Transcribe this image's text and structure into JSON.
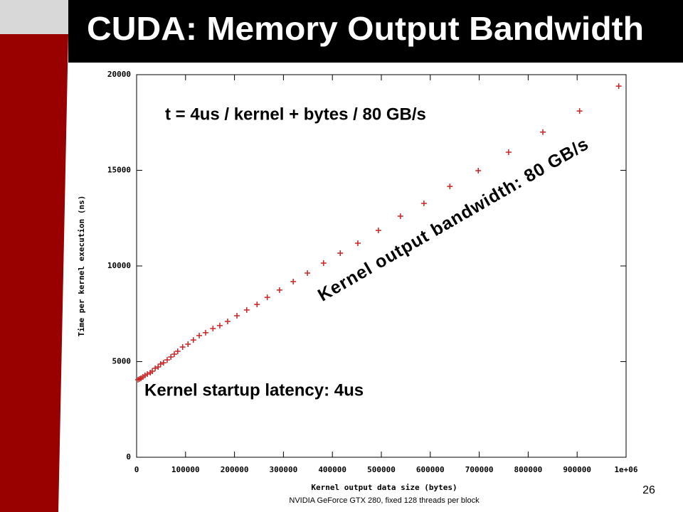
{
  "slide_number": "26",
  "footnote": "NVIDIA GeForce GTX 280, fixed 128 threads per block",
  "chart_data": {
    "type": "scatter",
    "title": "CUDA: Memory Output Bandwidth",
    "x_label": "Kernel output data size (bytes)",
    "y_label": "Time per kernel execution (ns)",
    "annotations": [
      "t = 4us / kernel + bytes / 80 GB/s",
      "Kernel output bandwidth: 80 GB/s",
      "Kernel startup latency: 4us"
    ],
    "color": "#cc2222",
    "x": [
      3000,
      6000,
      9000,
      13000,
      17000,
      22000,
      28000,
      32000,
      38000,
      44000,
      49000,
      55000,
      62500,
      70000,
      77000,
      84000,
      94000,
      105000,
      116000,
      128000,
      141000,
      156000,
      170000,
      186000,
      205000,
      225000,
      246000,
      267000,
      292000,
      320000,
      349000,
      382000,
      416000,
      452000,
      494000,
      539000,
      587000,
      640000,
      698000,
      760000,
      830000,
      905000,
      985000
    ],
    "values": [
      4050,
      4090,
      4130,
      4200,
      4280,
      4350,
      4420,
      4500,
      4650,
      4720,
      4870,
      4940,
      5090,
      5240,
      5390,
      5540,
      5760,
      5910,
      6130,
      6360,
      6510,
      6730,
      6880,
      7100,
      7400,
      7700,
      7990,
      8360,
      8740,
      9180,
      9630,
      10150,
      10670,
      11190,
      11860,
      12600,
      13270,
      14160,
      14980,
      15950,
      17000,
      18100,
      19400
    ],
    "xlim": [
      0,
      1000000
    ],
    "ylim": [
      0,
      20000
    ],
    "xticks": [
      0,
      100000,
      200000,
      300000,
      400000,
      500000,
      600000,
      700000,
      800000,
      900000,
      {
        "value": 1000000,
        "label": "1e+06"
      }
    ],
    "yticks": [
      0,
      5000,
      10000,
      15000,
      20000
    ]
  }
}
